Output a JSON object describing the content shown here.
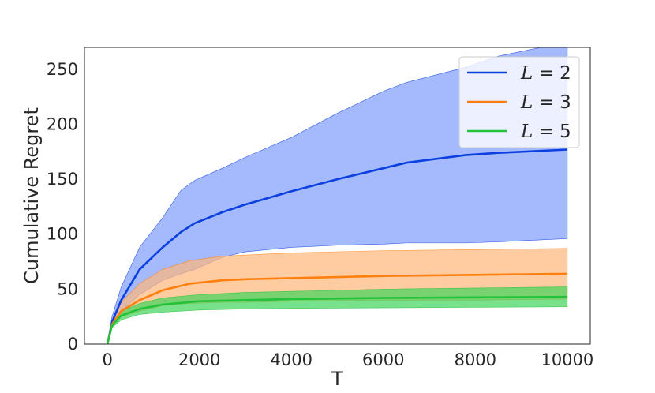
{
  "chart_data": {
    "type": "line",
    "title": "",
    "xlabel": "T",
    "ylabel": "Cumulative Regret",
    "xlim": [
      -500,
      10500
    ],
    "ylim": [
      0,
      270
    ],
    "xticks": [
      0,
      2000,
      4000,
      6000,
      8000,
      10000
    ],
    "yticks": [
      0,
      50,
      100,
      150,
      200,
      250
    ],
    "grid": false,
    "legend_position": "top-right",
    "series": [
      {
        "name": "L = 2",
        "legend_var": "L",
        "legend_val": "2",
        "color": "#0b3fe0",
        "band_color": "#7f9cfb",
        "x": [
          0,
          100,
          300,
          700,
          1200,
          1600,
          1900,
          2500,
          3000,
          4000,
          5000,
          6000,
          6500,
          7800,
          8500,
          10000
        ],
        "mean": [
          0,
          20,
          40,
          68,
          88,
          102,
          110,
          120,
          127,
          139,
          150,
          160,
          165,
          172,
          174,
          177
        ],
        "lower": [
          0,
          18,
          30,
          45,
          58,
          64,
          68,
          79,
          84,
          88,
          90,
          91,
          92,
          92,
          93,
          96
        ],
        "upper": [
          0,
          25,
          52,
          88,
          115,
          140,
          149,
          160,
          170,
          188,
          210,
          230,
          238,
          252,
          262,
          275
        ]
      },
      {
        "name": "L = 3",
        "legend_var": "L",
        "legend_val": "3",
        "color": "#ff7f0e",
        "band_color": "#ffb77a",
        "x": [
          0,
          100,
          300,
          700,
          1200,
          1800,
          2500,
          3000,
          4000,
          6000,
          8000,
          10000
        ],
        "mean": [
          0,
          18,
          30,
          40,
          49,
          55,
          58,
          59,
          60,
          62,
          63,
          64
        ],
        "lower": [
          0,
          16,
          25,
          30,
          35,
          37,
          38,
          38,
          39,
          40,
          40,
          41
        ],
        "upper": [
          0,
          22,
          38,
          55,
          68,
          76,
          80,
          81,
          83,
          85,
          86,
          87
        ]
      },
      {
        "name": "L = 5",
        "legend_var": "L",
        "legend_val": "5",
        "color": "#22c23a",
        "band_color": "#3fd45a",
        "x": [
          0,
          100,
          300,
          700,
          1200,
          2000,
          3000,
          4000,
          6000,
          8000,
          10000
        ],
        "mean": [
          0,
          17,
          26,
          32,
          36,
          39,
          40,
          41,
          42,
          42.5,
          43
        ],
        "lower": [
          0,
          15,
          22,
          27,
          29,
          31,
          32,
          32.5,
          33,
          33.5,
          34
        ],
        "upper": [
          0,
          19,
          30,
          37,
          42,
          45,
          47,
          48,
          50,
          51,
          52
        ]
      }
    ]
  }
}
